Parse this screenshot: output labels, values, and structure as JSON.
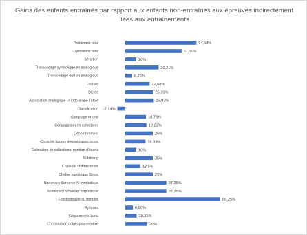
{
  "chart_data": {
    "type": "bar",
    "orientation": "horizontal",
    "title": "Gains des enfants entraînés par rapport aux enfants non-entraînés aux épreuves indirectement\nliées aux entrainements",
    "categories": [
      "Problèmes total",
      "Opérations total",
      "Sériation",
      "Transcodage symbolique en analogique",
      "Transcodage oral en analogique",
      "Lecture",
      "Dictée",
      "Association analogique -> indo-arabe Totale",
      "Classification",
      "Comptage erroné",
      "Comparaison de collections",
      "Dénombrement",
      "Copie de figures géométriques score",
      "Estimation de collections: nombre d'écarts",
      "Subitizing",
      "Copie de chiffres score",
      "Chaîne numérique Score",
      "Numeracy Screener N-symbolique",
      "Numeracy Screener symbolique",
      "Fonctionnalité du nombre",
      "Rythmes",
      "Séquence de Luria",
      "Coordination doigts-pouce totale"
    ],
    "values": [
      64.58,
      51.11,
      10,
      30.21,
      6.25,
      22.08,
      25.3,
      25.83,
      -7.14,
      18.75,
      19.23,
      25,
      18.33,
      10,
      25,
      13.5,
      25,
      37.25,
      37.25,
      86.25,
      6.9,
      10.31,
      20
    ],
    "value_labels": [
      "64,58%",
      "51,11%",
      "10%",
      "30,21%",
      "6,25%",
      "22,08%",
      "25,30%",
      "25,83%",
      "-7,14%",
      "18,75%",
      "19,23%",
      "25%",
      "18,33%",
      "10%",
      "25%",
      "13,5%",
      "25%",
      "37,25%",
      "37,25%",
      "86,25%",
      "6,90%",
      "10,31%",
      "20%"
    ],
    "grid": false,
    "legend": "none",
    "bar_color": "#4472c4"
  }
}
